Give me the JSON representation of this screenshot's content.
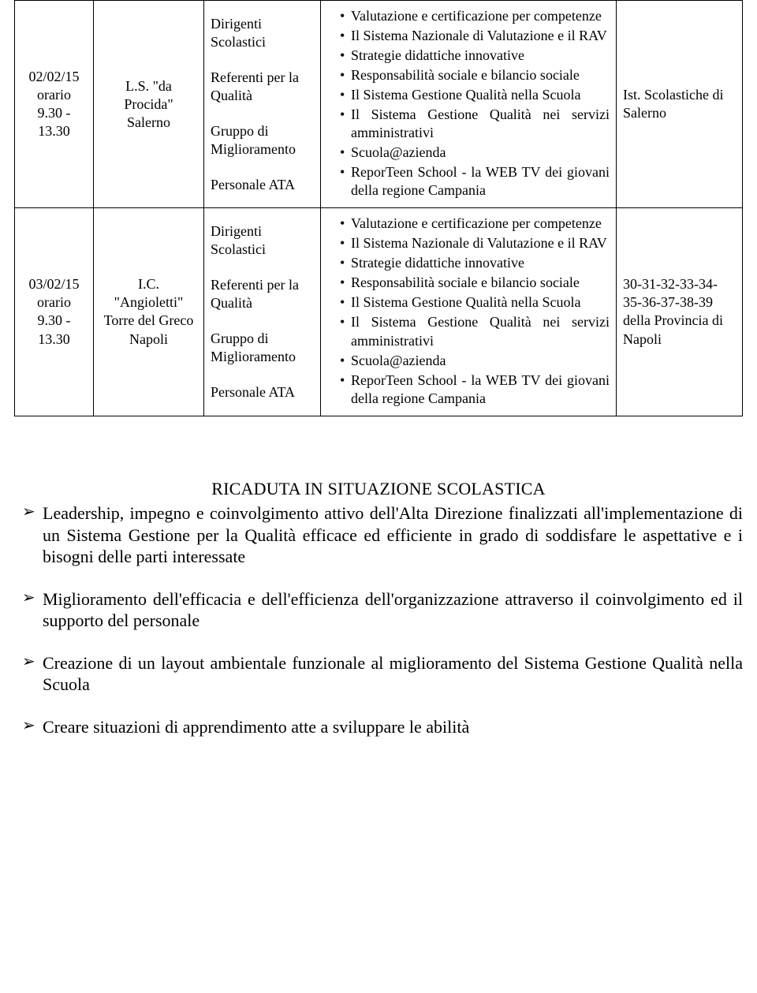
{
  "table": {
    "rows": [
      {
        "date_line1": "02/02/15",
        "date_line2": "orario",
        "date_line3": "9.30 - 13.30",
        "loc_line1": "L.S. \"da",
        "loc_line2": "Procida\"",
        "loc_line3": "Salerno",
        "who": [
          "Dirigenti Scolastici",
          "Referenti per la Qualità",
          "Gruppo di Miglioramento",
          "Personale ATA"
        ],
        "topics": [
          "Valutazione e certificazione per competenze",
          "Il Sistema Nazionale di Valutazione e il RAV",
          "Strategie didattiche innovative",
          "Responsabilità sociale e bilancio sociale",
          "Il Sistema Gestione Qualità nella Scuola",
          "Il Sistema Gestione Qualità nei servizi amministrativi",
          "Scuola@azienda",
          "ReporTeen School - la WEB TV dei giovani della regione Campania"
        ],
        "dist": "Ist. Scolastiche di Salerno"
      },
      {
        "date_line1": "03/02/15",
        "date_line2": "orario",
        "date_line3": "9.30 - 13.30",
        "loc_line1": "I.C.",
        "loc_line2": "\"Angioletti\"",
        "loc_line3": "Torre del Greco",
        "loc_line4": "Napoli",
        "who": [
          "Dirigenti Scolastici",
          "Referenti per la Qualità",
          "Gruppo di Miglioramento",
          "Personale ATA"
        ],
        "topics": [
          "Valutazione e certificazione per competenze",
          "Il Sistema Nazionale di Valutazione e il RAV",
          "Strategie didattiche innovative",
          "Responsabilità sociale e bilancio sociale",
          "Il Sistema Gestione Qualità nella Scuola",
          "Il Sistema Gestione Qualità nei servizi amministrativi",
          "Scuola@azienda",
          "ReporTeen School - la WEB TV dei giovani della regione Campania"
        ],
        "dist": "30-31-32-33-34-35-36-37-38-39 della Provincia di Napoli"
      }
    ]
  },
  "section_title": "RICADUTA IN SITUAZIONE SCOLASTICA",
  "paragraphs": [
    "Leadership, impegno e coinvolgimento attivo dell'Alta Direzione finalizzati all'implementazione di un Sistema Gestione per la Qualità efficace ed efficiente in grado di soddisfare le aspettative e i bisogni delle parti interessate",
    "Miglioramento dell'efficacia e dell'efficienza dell'organizzazione attraverso il coinvolgimento ed il supporto del personale",
    "Creazione di un layout ambientale funzionale al miglioramento del Sistema Gestione Qualità nella Scuola",
    "Creare situazioni di apprendimento atte a sviluppare le abilità"
  ]
}
